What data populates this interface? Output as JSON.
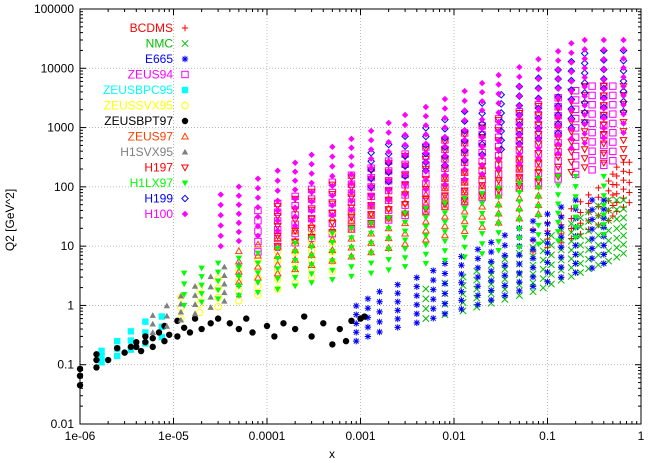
{
  "chart_data": {
    "type": "scatter",
    "xlabel": "x",
    "ylabel": "Q2 [GeV^2]",
    "xscale": "log",
    "yscale": "log",
    "xlim": [
      1e-06,
      1
    ],
    "ylim": [
      0.01,
      100000
    ],
    "xticks": [
      "1e-06",
      "1e-05",
      "0.0001",
      "0.001",
      "0.01",
      "0.1",
      "1"
    ],
    "yticks": [
      "0.01",
      "0.1",
      "1",
      "10",
      "100",
      "1000",
      "10000",
      "100000"
    ],
    "grid": true,
    "legend_position": "top-left",
    "series": [
      {
        "name": "BCDMS",
        "color": "#ff0000",
        "marker": "plus",
        "x": [
          0.07,
          0.1,
          0.14,
          0.18,
          0.225,
          0.275,
          0.35,
          0.45,
          0.5,
          0.55,
          0.65,
          0.75
        ],
        "qmin": 8,
        "qmax": 260
      },
      {
        "name": "NMC",
        "color": "#00c000",
        "marker": "cross",
        "x": [
          0.005,
          0.008,
          0.0125,
          0.0175,
          0.025,
          0.035,
          0.05,
          0.07,
          0.09,
          0.11,
          0.14,
          0.18,
          0.225,
          0.275,
          0.35,
          0.45,
          0.55,
          0.65
        ],
        "qmin": 0.6,
        "qmax": 60
      },
      {
        "name": "E665",
        "color": "#0000ff",
        "marker": "star",
        "x": [
          0.0009,
          0.0012,
          0.0016,
          0.0025,
          0.004,
          0.006,
          0.008,
          0.012,
          0.018,
          0.025,
          0.035,
          0.05,
          0.07,
          0.1,
          0.14,
          0.2,
          0.3,
          0.4
        ],
        "qmin": 0.25,
        "qmax": 60
      },
      {
        "name": "ZEUS94",
        "color": "#ff00ff",
        "marker": "square-open",
        "x": [
          8e-05,
          0.00013,
          0.0002,
          0.0003,
          0.0005,
          0.0008,
          0.0013,
          0.002,
          0.003,
          0.005,
          0.008,
          0.013,
          0.02,
          0.03,
          0.05,
          0.08,
          0.13,
          0.2,
          0.3,
          0.4,
          0.5
        ],
        "qmin": 8,
        "qmax": 5000
      },
      {
        "name": "ZEUSBPC95",
        "color": "#00ffff",
        "marker": "square-filled",
        "x": [
          1.7e-06,
          2.5e-06,
          3.5e-06,
          5e-06,
          7.5e-06
        ],
        "qmin": 0.11,
        "qmax": 0.65
      },
      {
        "name": "ZEUSSVX95",
        "color": "#ffff00",
        "marker": "circle-open",
        "x": [
          1.2e-05,
          1.9e-05,
          3e-05,
          5e-05,
          8e-05,
          0.00013,
          0.0002,
          0.0003,
          0.0005
        ],
        "qmin": 0.6,
        "qmax": 17
      },
      {
        "name": "ZEUSBPT97",
        "color": "#000000",
        "marker": "circle-filled",
        "points": [
          [
            1e-06,
            0.045
          ],
          [
            1e-06,
            0.065
          ],
          [
            1e-06,
            0.085
          ],
          [
            1.5e-06,
            0.09
          ],
          [
            1.5e-06,
            0.12
          ],
          [
            1.5e-06,
            0.15
          ],
          [
            2e-06,
            0.12
          ],
          [
            2.5e-06,
            0.19
          ],
          [
            3e-06,
            0.16
          ],
          [
            3.5e-06,
            0.2
          ],
          [
            4e-06,
            0.2
          ],
          [
            4e-06,
            0.24
          ],
          [
            4.5e-06,
            0.17
          ],
          [
            5e-06,
            0.24
          ],
          [
            5e-06,
            0.3
          ],
          [
            6e-06,
            0.2
          ],
          [
            6e-06,
            0.28
          ],
          [
            7e-06,
            0.35
          ],
          [
            8e-06,
            0.25
          ],
          [
            8e-06,
            0.45
          ],
          [
            9e-06,
            0.32
          ],
          [
            1.1e-05,
            0.3
          ],
          [
            1.1e-05,
            0.55
          ],
          [
            1.3e-05,
            0.42
          ],
          [
            1.5e-05,
            0.35
          ],
          [
            1.7e-05,
            0.6
          ],
          [
            2e-05,
            0.4
          ],
          [
            2.5e-05,
            0.5
          ],
          [
            3e-05,
            0.6
          ],
          [
            4e-05,
            0.5
          ],
          [
            5e-05,
            0.4
          ],
          [
            6e-05,
            0.6
          ],
          [
            7e-05,
            0.35
          ],
          [
            0.0001,
            0.45
          ],
          [
            0.00012,
            0.3
          ],
          [
            0.00015,
            0.5
          ],
          [
            0.0002,
            0.4
          ],
          [
            0.00025,
            0.65
          ],
          [
            0.0003,
            0.3
          ],
          [
            0.0004,
            0.5
          ],
          [
            0.0005,
            0.22
          ],
          [
            0.0006,
            0.4
          ],
          [
            0.0007,
            0.25
          ],
          [
            0.0008,
            0.55
          ],
          [
            0.001,
            0.6
          ],
          [
            0.0011,
            0.65
          ]
        ]
      },
      {
        "name": "ZEUS97",
        "color": "#ff4000",
        "marker": "triangle-up-open",
        "x": [
          5e-05,
          8e-05,
          0.00013,
          0.0002,
          0.0003,
          0.0005,
          0.0008,
          0.0013,
          0.002,
          0.003,
          0.005,
          0.008,
          0.013,
          0.02,
          0.03,
          0.05,
          0.08
        ],
        "qmin": 2.5,
        "qmax": 300
      },
      {
        "name": "H1SVX95",
        "color": "#808080",
        "marker": "triangle-up-filled",
        "x": [
          6e-06,
          8.5e-06,
          1.2e-05,
          1.7e-05,
          2.5e-05,
          3.5e-05,
          5e-05
        ],
        "qmin": 0.35,
        "qmax": 5
      },
      {
        "name": "H197",
        "color": "#ff0000",
        "marker": "triangle-down-open",
        "x": [
          0.00013,
          0.0002,
          0.0003,
          0.0005,
          0.0008,
          0.0013,
          0.002,
          0.003,
          0.005,
          0.008,
          0.013,
          0.02,
          0.03,
          0.05,
          0.08,
          0.13,
          0.18,
          0.25,
          0.4,
          0.65
        ],
        "qmin": 10,
        "qmax": 5000
      },
      {
        "name": "H1LX97",
        "color": "#00ff00",
        "marker": "triangle-down-filled",
        "x": [
          1.3e-05,
          2e-05,
          3e-05,
          5e-05,
          8e-05,
          0.00013,
          0.0002,
          0.0003,
          0.0005,
          0.0008,
          0.0013,
          0.002,
          0.003,
          0.005,
          0.008,
          0.013,
          0.02,
          0.03,
          0.05,
          0.08,
          0.13,
          0.2,
          0.4
        ],
        "qmin": 1,
        "qmax": 150
      },
      {
        "name": "H199",
        "color": "#0000ff",
        "marker": "diamond-open",
        "x": [
          0.0013,
          0.002,
          0.003,
          0.005,
          0.008,
          0.013,
          0.02,
          0.032,
          0.05,
          0.08,
          0.13,
          0.18,
          0.25,
          0.4,
          0.65
        ],
        "qmin": 100,
        "qmax": 20000
      },
      {
        "name": "H100",
        "color": "#ff00ff",
        "marker": "diamond-filled",
        "x": [
          3.2e-05,
          5e-05,
          8e-05,
          0.00013,
          0.0002,
          0.0003,
          0.0005,
          0.0008,
          0.0013,
          0.002,
          0.003,
          0.005,
          0.008,
          0.013,
          0.02,
          0.03,
          0.05,
          0.08,
          0.13,
          0.18,
          0.25,
          0.4,
          0.65
        ],
        "qmin": 10,
        "qmax": 30000
      }
    ]
  }
}
